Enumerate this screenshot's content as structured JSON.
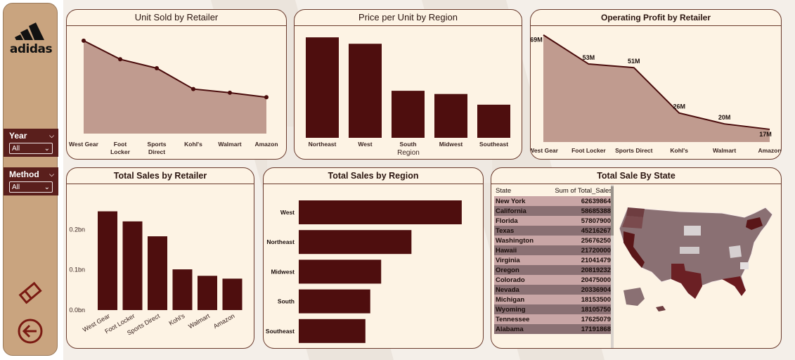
{
  "brand": {
    "logo_text": "adidas"
  },
  "filters": [
    {
      "label": "Year",
      "value": "All"
    },
    {
      "label": "Method",
      "value": "All"
    }
  ],
  "colors": {
    "sidebar": "#c9a47f",
    "accent": "#4e0e0e",
    "card_bg": "#fdf3e4",
    "area": "#b58b80"
  },
  "cards": {
    "unit_sold": {
      "title": "Unit Sold by Retailer"
    },
    "price_unit": {
      "title": "Price per Unit by Region"
    },
    "op_profit": {
      "title": "Operating Profit by Retailer"
    },
    "total_sales_retailer": {
      "title": "Total Sales by Retailer"
    },
    "total_sales_region": {
      "title": "Total Sales by Region"
    },
    "sale_by_state": {
      "title": "Total Sale By State"
    }
  },
  "chart_data": [
    {
      "id": "unit_sold",
      "type": "area",
      "title": "Unit Sold by Retailer",
      "categories": [
        "West Gear",
        "Foot Locker",
        "Sports Direct",
        "Kohl's",
        "Walmart",
        "Amazon"
      ],
      "values": [
        625000,
        500000,
        440000,
        300000,
        275000,
        245000
      ],
      "ylim": [
        0,
        700000
      ]
    },
    {
      "id": "price_unit",
      "type": "bar",
      "title": "Price per Unit by Region",
      "xlabel": "Region",
      "categories": [
        "Northeast",
        "West",
        "South",
        "Midwest",
        "Southeast"
      ],
      "values": [
        47,
        44,
        22,
        20.5,
        15.5
      ],
      "ylim": [
        0,
        50
      ]
    },
    {
      "id": "op_profit",
      "type": "area",
      "title": "Operating Profit by Retailer",
      "categories": [
        "West Gear",
        "Foot Locker",
        "Sports Direct",
        "Kohl's",
        "Walmart",
        "Amazon"
      ],
      "values": [
        69,
        53,
        51,
        26,
        20,
        17
      ],
      "labels": [
        "69M",
        "53M",
        "51M",
        "26M",
        "20M",
        "17M"
      ],
      "ylim": [
        10,
        72
      ]
    },
    {
      "id": "total_sales_retailer",
      "type": "bar",
      "title": "Total Sales by Retailer",
      "categories": [
        "West Gear",
        "Foot Locker",
        "Sports Direct",
        "Kohl's",
        "Walmart",
        "Amazon"
      ],
      "values": [
        0.245,
        0.22,
        0.183,
        0.101,
        0.085,
        0.078
      ],
      "ticks": [
        "0.0bn",
        "0.1bn",
        "0.2bn"
      ],
      "ylim": [
        0,
        0.3
      ]
    },
    {
      "id": "total_sales_region",
      "type": "bar",
      "orientation": "horizontal",
      "title": "Total Sales by Region",
      "categories": [
        "West",
        "Northeast",
        "Midwest",
        "South",
        "Southeast"
      ],
      "values": [
        269,
        186,
        136,
        118,
        110
      ],
      "xlim": [
        0,
        290
      ]
    },
    {
      "id": "sale_by_state",
      "type": "table",
      "title": "Total Sale By State",
      "columns": [
        "State",
        "Sum of Total_Sales"
      ],
      "rows": [
        [
          "New York",
          "62639864"
        ],
        [
          "California",
          "58685388"
        ],
        [
          "Florida",
          "57807900"
        ],
        [
          "Texas",
          "45216267"
        ],
        [
          "Washington",
          "25676250"
        ],
        [
          "Hawaii",
          "21720000"
        ],
        [
          "Virginia",
          "21041479"
        ],
        [
          "Oregon",
          "20819232"
        ],
        [
          "Colorado",
          "20475000"
        ],
        [
          "Nevada",
          "20336904"
        ],
        [
          "Michigan",
          "18153500"
        ],
        [
          "Wyoming",
          "18105750"
        ],
        [
          "Tennessee",
          "17625079"
        ],
        [
          "Alabama",
          "17191868"
        ]
      ]
    }
  ]
}
